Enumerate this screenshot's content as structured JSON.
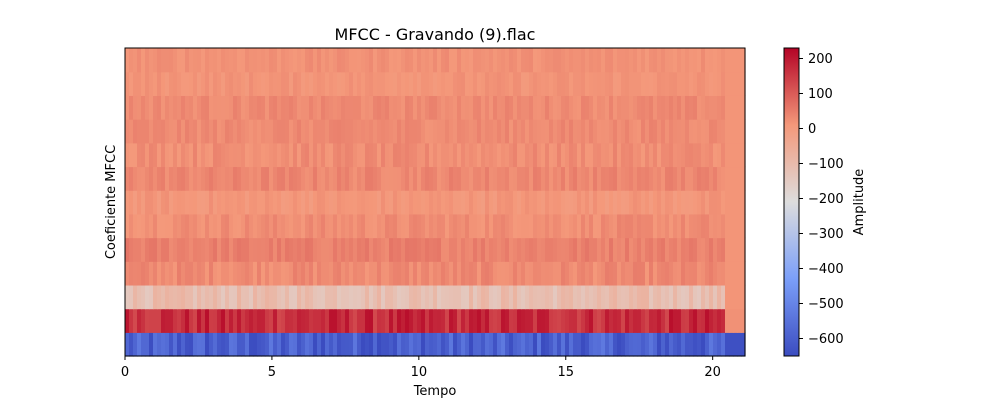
{
  "chart_data": {
    "type": "heatmap",
    "title": "MFCC - Gravando (9).flac",
    "xlabel": "Tempo",
    "ylabel": "Coeficiente MFCC",
    "xlim": [
      0,
      21.1
    ],
    "x_ticks": [
      0,
      5,
      10,
      15,
      20
    ],
    "x_tick_labels": [
      "0",
      "5",
      "10",
      "15",
      "20"
    ],
    "n_coefficients": 13,
    "coefficient_mean_amplitude": [
      -600,
      170,
      -110,
      30,
      45,
      25,
      10,
      35,
      25,
      30,
      30,
      15,
      20
    ],
    "colormap": "coolwarm",
    "colorbar": {
      "label": "Amplitude",
      "vmin": -650,
      "vmax": 230,
      "ticks": [
        200,
        100,
        0,
        -100,
        -200,
        -300,
        -400,
        -500,
        -600
      ],
      "tick_labels": [
        "200",
        "100",
        "0",
        "−100",
        "−200",
        "−300",
        "−400",
        "−500",
        "−600"
      ]
    }
  }
}
